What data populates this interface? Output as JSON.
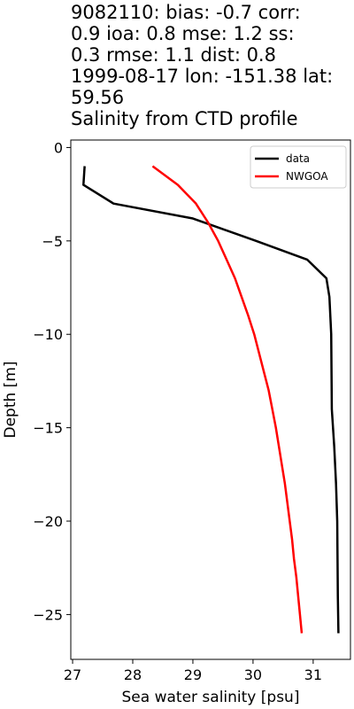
{
  "title_lines": [
    "9082110: bias: -0.7  corr:",
    "0.9  ioa: 0.8  mse: 1.2  ss:",
    "0.3  rmse: 1.1  dist: 0.8",
    "1999-08-17 lon: -151.38 lat:",
    "59.56",
    "Salinity from CTD profile"
  ],
  "chart_data": {
    "type": "line",
    "title": "9082110: bias: -0.7  corr: 0.9  ioa: 0.8  mse: 1.2  ss: 0.3  rmse: 1.1  dist: 0.8 1999-08-17 lon: -151.38 lat: 59.56 Salinity from CTD profile",
    "xlabel": "Sea water salinity [psu]",
    "ylabel": "Depth [m]",
    "xlim": [
      26.97,
      31.62
    ],
    "ylim": [
      -27.4,
      0.4
    ],
    "xticks": [
      27,
      28,
      29,
      30,
      31
    ],
    "xtick_labels": [
      "27",
      "28",
      "29",
      "30",
      "31"
    ],
    "yticks": [
      0,
      -5,
      -10,
      -15,
      -20,
      -25
    ],
    "ytick_labels": [
      "0",
      "−5",
      "−10",
      "−15",
      "−20",
      "−25"
    ],
    "grid": false,
    "legend_position": "top-right",
    "series": [
      {
        "name": "data",
        "color": "#000000",
        "points": [
          [
            27.2,
            -1.0
          ],
          [
            27.18,
            -2.0
          ],
          [
            27.68,
            -3.0
          ],
          [
            29.0,
            -3.8
          ],
          [
            30.05,
            -5.0
          ],
          [
            30.9,
            -6.0
          ],
          [
            31.22,
            -7.0
          ],
          [
            31.27,
            -8.0
          ],
          [
            31.3,
            -10.0
          ],
          [
            31.31,
            -14.0
          ],
          [
            31.35,
            -16.0
          ],
          [
            31.38,
            -18.0
          ],
          [
            31.4,
            -20.0
          ],
          [
            31.41,
            -24.0
          ],
          [
            31.42,
            -26.0
          ]
        ]
      },
      {
        "name": "NWGOA",
        "color": "#ff0000",
        "points": [
          [
            28.33,
            -1.0
          ],
          [
            28.75,
            -2.0
          ],
          [
            29.05,
            -3.0
          ],
          [
            29.25,
            -4.0
          ],
          [
            29.42,
            -5.0
          ],
          [
            29.56,
            -6.0
          ],
          [
            29.7,
            -7.0
          ],
          [
            29.81,
            -8.0
          ],
          [
            29.92,
            -9.0
          ],
          [
            30.02,
            -10.0
          ],
          [
            30.1,
            -11.0
          ],
          [
            30.18,
            -12.0
          ],
          [
            30.26,
            -13.0
          ],
          [
            30.32,
            -14.0
          ],
          [
            30.38,
            -15.0
          ],
          [
            30.43,
            -16.0
          ],
          [
            30.48,
            -17.0
          ],
          [
            30.53,
            -18.0
          ],
          [
            30.57,
            -19.0
          ],
          [
            30.61,
            -20.0
          ],
          [
            30.65,
            -21.0
          ],
          [
            30.68,
            -22.0
          ],
          [
            30.72,
            -23.0
          ],
          [
            30.75,
            -24.0
          ],
          [
            30.78,
            -25.0
          ],
          [
            30.81,
            -26.0
          ]
        ]
      }
    ]
  }
}
